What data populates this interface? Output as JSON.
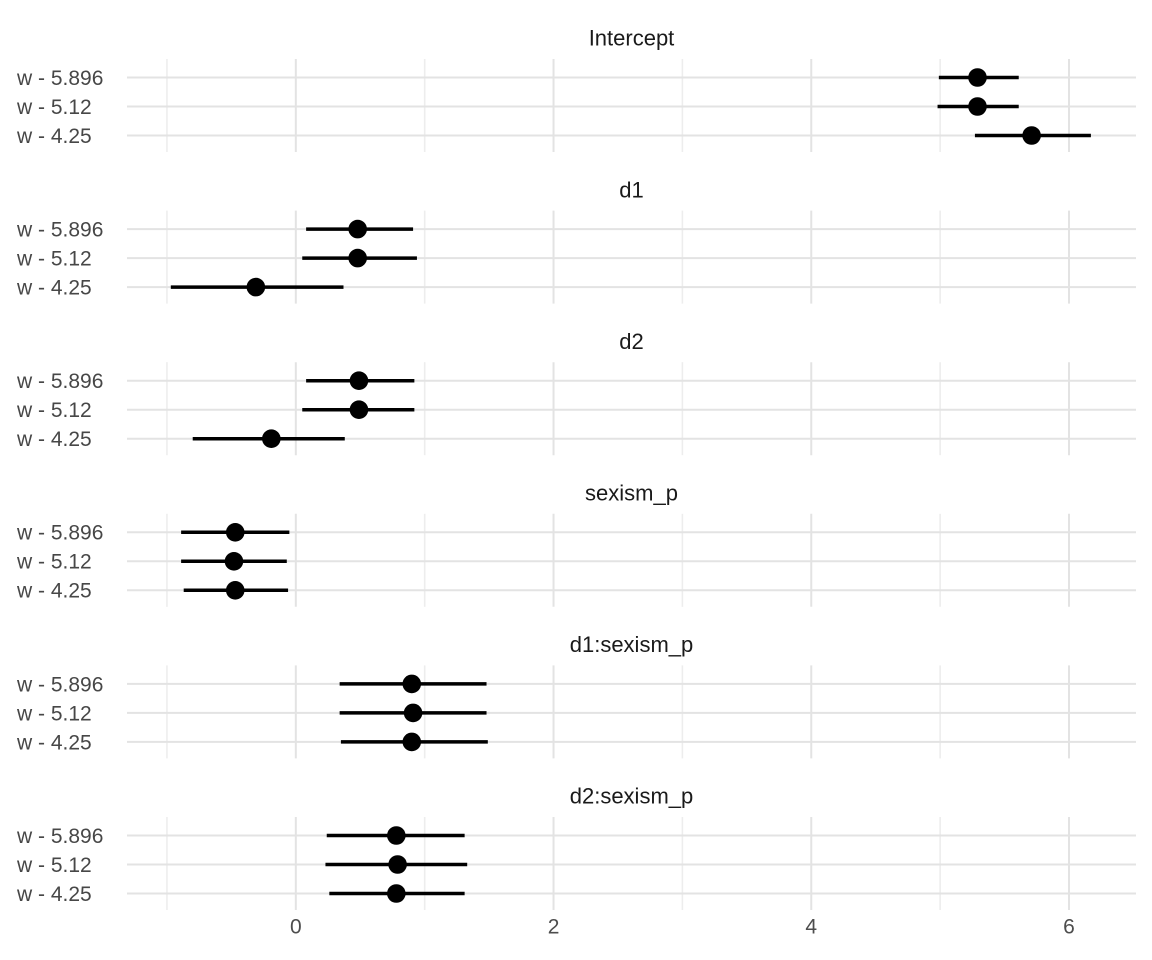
{
  "chart_data": {
    "type": "pointrange",
    "title": "",
    "xlabel": "",
    "ylabel": "",
    "legend": "none",
    "grid": "on",
    "x_axis": {
      "ticks": [
        0,
        2,
        4,
        6
      ],
      "minor_ticks": [
        -1,
        1,
        3,
        5
      ],
      "limits": [
        -1.31,
        6.52
      ]
    },
    "row_labels": [
      "w - 5.896",
      "w - 5.12",
      "w - 4.25"
    ],
    "facets": [
      {
        "title": "Intercept",
        "rows": [
          {
            "label": "w - 5.896",
            "estimate": 5.29,
            "ci_low": 4.99,
            "ci_high": 5.61
          },
          {
            "label": "w - 5.12",
            "estimate": 5.29,
            "ci_low": 4.98,
            "ci_high": 5.61
          },
          {
            "label": "w - 4.25",
            "estimate": 5.71,
            "ci_low": 5.27,
            "ci_high": 6.17
          }
        ]
      },
      {
        "title": "d1",
        "rows": [
          {
            "label": "w - 5.896",
            "estimate": 0.48,
            "ci_low": 0.08,
            "ci_high": 0.91
          },
          {
            "label": "w - 5.12",
            "estimate": 0.48,
            "ci_low": 0.05,
            "ci_high": 0.94
          },
          {
            "label": "w - 4.25",
            "estimate": -0.31,
            "ci_low": -0.97,
            "ci_high": 0.37
          }
        ]
      },
      {
        "title": "d2",
        "rows": [
          {
            "label": "w - 5.896",
            "estimate": 0.49,
            "ci_low": 0.08,
            "ci_high": 0.92
          },
          {
            "label": "w - 5.12",
            "estimate": 0.49,
            "ci_low": 0.05,
            "ci_high": 0.92
          },
          {
            "label": "w - 4.25",
            "estimate": -0.19,
            "ci_low": -0.8,
            "ci_high": 0.38
          }
        ]
      },
      {
        "title": "sexism_p",
        "rows": [
          {
            "label": "w - 5.896",
            "estimate": -0.47,
            "ci_low": -0.89,
            "ci_high": -0.05
          },
          {
            "label": "w - 5.12",
            "estimate": -0.48,
            "ci_low": -0.89,
            "ci_high": -0.07
          },
          {
            "label": "w - 4.25",
            "estimate": -0.47,
            "ci_low": -0.87,
            "ci_high": -0.06
          }
        ]
      },
      {
        "title": "d1:sexism_p",
        "rows": [
          {
            "label": "w - 5.896",
            "estimate": 0.9,
            "ci_low": 0.34,
            "ci_high": 1.48
          },
          {
            "label": "w - 5.12",
            "estimate": 0.91,
            "ci_low": 0.34,
            "ci_high": 1.48
          },
          {
            "label": "w - 4.25",
            "estimate": 0.9,
            "ci_low": 0.35,
            "ci_high": 1.49
          }
        ]
      },
      {
        "title": "d2:sexism_p",
        "rows": [
          {
            "label": "w - 5.896",
            "estimate": 0.78,
            "ci_low": 0.24,
            "ci_high": 1.31
          },
          {
            "label": "w - 5.12",
            "estimate": 0.79,
            "ci_low": 0.23,
            "ci_high": 1.33
          },
          {
            "label": "w - 4.25",
            "estimate": 0.78,
            "ci_low": 0.26,
            "ci_high": 1.31
          }
        ]
      }
    ],
    "style": {
      "point_color": "#000000",
      "interval_color": "#000000",
      "grid_major_color": "#e3e3e3",
      "grid_minor_color": "#ededed",
      "strip_text_color": "#1a1a1a",
      "row_label_color": "#474747",
      "axis_text_color": "#4d4d4d",
      "background": "#ffffff"
    }
  }
}
